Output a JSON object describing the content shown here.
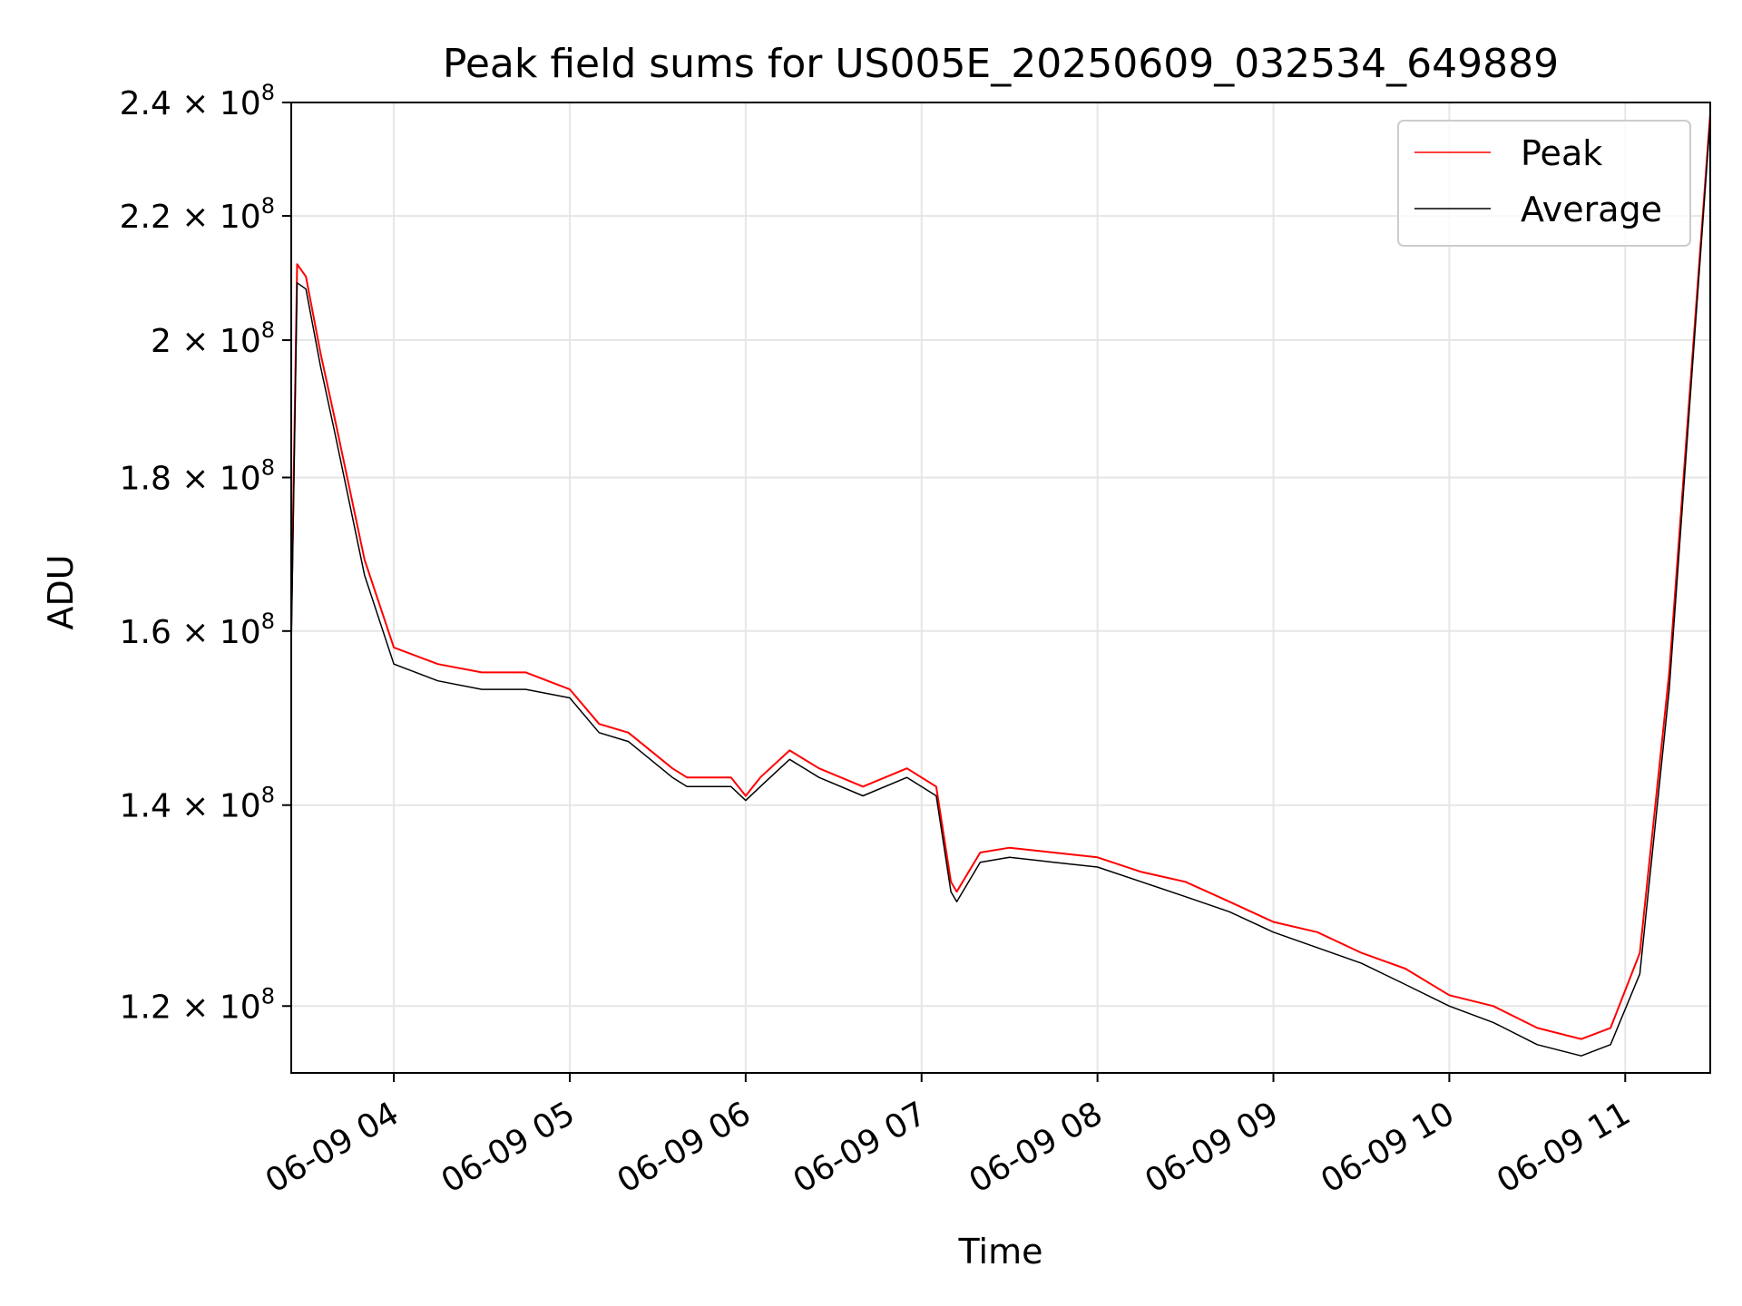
{
  "chart_data": {
    "type": "line",
    "title": "Peak field sums for US005E_20250609_032534_649889",
    "xlabel": "Time",
    "ylabel": "ADU",
    "yscale": "log",
    "xlim": [
      "06-09 03:25",
      "06-09 11:29"
    ],
    "ylim": [
      114000000,
      240000000
    ],
    "grid": true,
    "legend_position": "upper right",
    "x_ticks": [
      "06-09 04",
      "06-09 05",
      "06-09 06",
      "06-09 07",
      "06-09 08",
      "06-09 09",
      "06-09 10",
      "06-09 11"
    ],
    "y_ticks": [
      {
        "mantissa": "1.2",
        "exp": "8",
        "value": 120000000
      },
      {
        "mantissa": "1.4",
        "exp": "8",
        "value": 140000000
      },
      {
        "mantissa": "1.6",
        "exp": "8",
        "value": 160000000
      },
      {
        "mantissa": "1.8",
        "exp": "8",
        "value": 180000000
      },
      {
        "mantissa": "2",
        "exp": "8",
        "value": 200000000
      },
      {
        "mantissa": "2.2",
        "exp": "8",
        "value": 220000000
      },
      {
        "mantissa": "2.4",
        "exp": "8",
        "value": 240000000
      }
    ],
    "series": [
      {
        "name": "Peak",
        "color": "#ff0000",
        "x": [
          "06-09 03:25",
          "06-09 03:27",
          "06-09 03:30",
          "06-09 03:35",
          "06-09 03:40",
          "06-09 03:50",
          "06-09 04:00",
          "06-09 04:15",
          "06-09 04:30",
          "06-09 04:45",
          "06-09 05:00",
          "06-09 05:10",
          "06-09 05:20",
          "06-09 05:35",
          "06-09 05:40",
          "06-09 05:55",
          "06-09 06:00",
          "06-09 06:05",
          "06-09 06:15",
          "06-09 06:25",
          "06-09 06:40",
          "06-09 06:55",
          "06-09 07:05",
          "06-09 07:10",
          "06-09 07:12",
          "06-09 07:20",
          "06-09 07:30",
          "06-09 07:45",
          "06-09 08:00",
          "06-09 08:15",
          "06-09 08:30",
          "06-09 08:45",
          "06-09 09:00",
          "06-09 09:15",
          "06-09 09:30",
          "06-09 09:45",
          "06-09 10:00",
          "06-09 10:15",
          "06-09 10:30",
          "06-09 10:45",
          "06-09 10:55",
          "06-09 11:05",
          "06-09 11:15",
          "06-09 11:29"
        ],
        "values": [
          160000000,
          212000000,
          210000000,
          198000000,
          188000000,
          169000000,
          158000000,
          156000000,
          155000000,
          155000000,
          153000000,
          149000000,
          148000000,
          144000000,
          143000000,
          143000000,
          141000000,
          143000000,
          146000000,
          144000000,
          142000000,
          144000000,
          142000000,
          132000000,
          131000000,
          135000000,
          135500000,
          135000000,
          134500000,
          133000000,
          132000000,
          130000000,
          128000000,
          127000000,
          125000000,
          123500000,
          121000000,
          120000000,
          118000000,
          117000000,
          118000000,
          125000000,
          155000000,
          238000000
        ]
      },
      {
        "name": "Average",
        "color": "#000000",
        "x": [
          "06-09 03:25",
          "06-09 03:27",
          "06-09 03:30",
          "06-09 03:35",
          "06-09 03:40",
          "06-09 03:50",
          "06-09 04:00",
          "06-09 04:15",
          "06-09 04:30",
          "06-09 04:45",
          "06-09 05:00",
          "06-09 05:10",
          "06-09 05:20",
          "06-09 05:35",
          "06-09 05:40",
          "06-09 05:55",
          "06-09 06:00",
          "06-09 06:05",
          "06-09 06:15",
          "06-09 06:25",
          "06-09 06:40",
          "06-09 06:55",
          "06-09 07:05",
          "06-09 07:10",
          "06-09 07:12",
          "06-09 07:20",
          "06-09 07:30",
          "06-09 07:45",
          "06-09 08:00",
          "06-09 08:15",
          "06-09 08:30",
          "06-09 08:45",
          "06-09 09:00",
          "06-09 09:15",
          "06-09 09:30",
          "06-09 09:45",
          "06-09 10:00",
          "06-09 10:15",
          "06-09 10:30",
          "06-09 10:45",
          "06-09 10:55",
          "06-09 11:05",
          "06-09 11:15",
          "06-09 11:29"
        ],
        "values": [
          158000000,
          209000000,
          208000000,
          196000000,
          186000000,
          167000000,
          156000000,
          154000000,
          153000000,
          153000000,
          152000000,
          148000000,
          147000000,
          143000000,
          142000000,
          142000000,
          140500000,
          142000000,
          145000000,
          143000000,
          141000000,
          143000000,
          141000000,
          131000000,
          130000000,
          134000000,
          134500000,
          134000000,
          133500000,
          132000000,
          130500000,
          129000000,
          127000000,
          125500000,
          124000000,
          122000000,
          120000000,
          118500000,
          116500000,
          115500000,
          116500000,
          123000000,
          153000000,
          237000000
        ]
      }
    ]
  }
}
